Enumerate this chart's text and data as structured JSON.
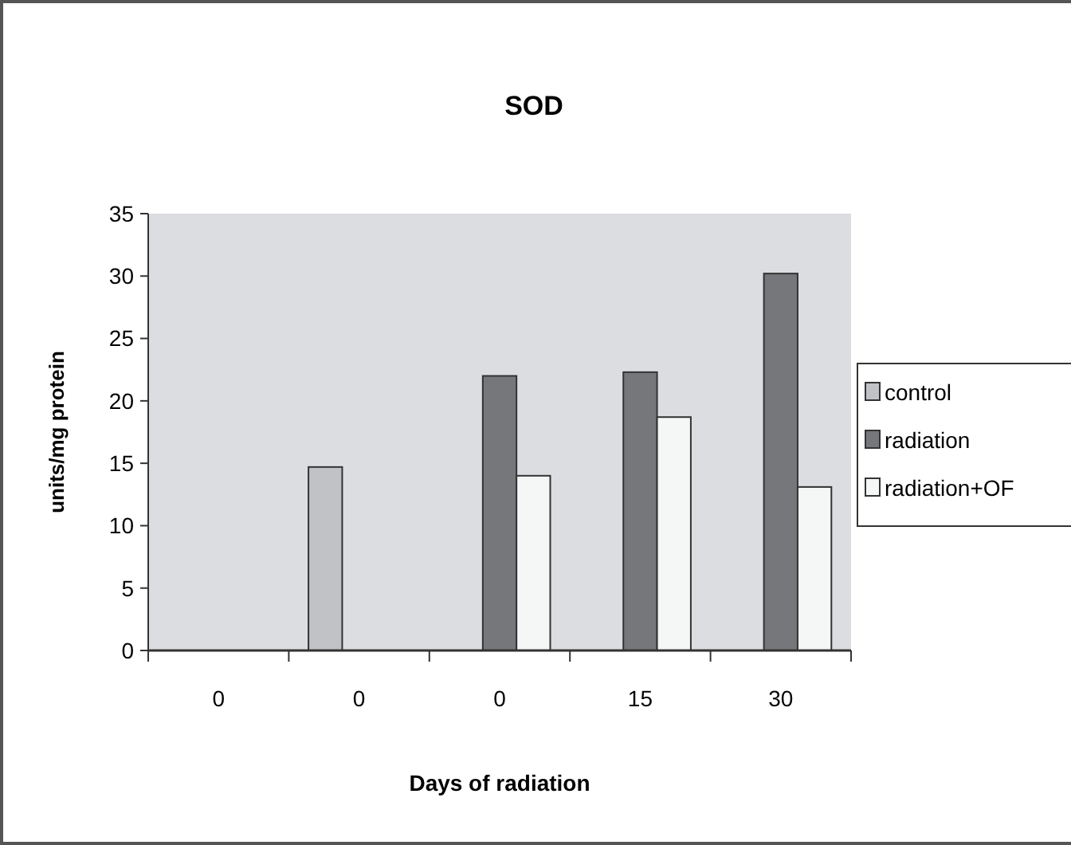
{
  "chart_data": {
    "type": "bar",
    "title": "SOD",
    "xlabel": "Days of radiation",
    "ylabel": "units/mg protein",
    "categories": [
      "0",
      "0",
      "0",
      "15",
      "30"
    ],
    "series": [
      {
        "name": "control",
        "color": "#c0c2c6",
        "values": [
          null,
          14.7,
          null,
          null,
          null
        ]
      },
      {
        "name": "radiation",
        "color": "#76777b",
        "values": [
          null,
          null,
          22.0,
          22.3,
          30.2
        ]
      },
      {
        "name": "radiation+OF",
        "color": "#f5f6f6",
        "values": [
          null,
          null,
          14.0,
          18.7,
          13.1
        ]
      }
    ],
    "ylim": [
      0,
      35
    ],
    "yticks": [
      0,
      5,
      10,
      15,
      20,
      25,
      30,
      35
    ],
    "grid": false,
    "legend": "right"
  }
}
